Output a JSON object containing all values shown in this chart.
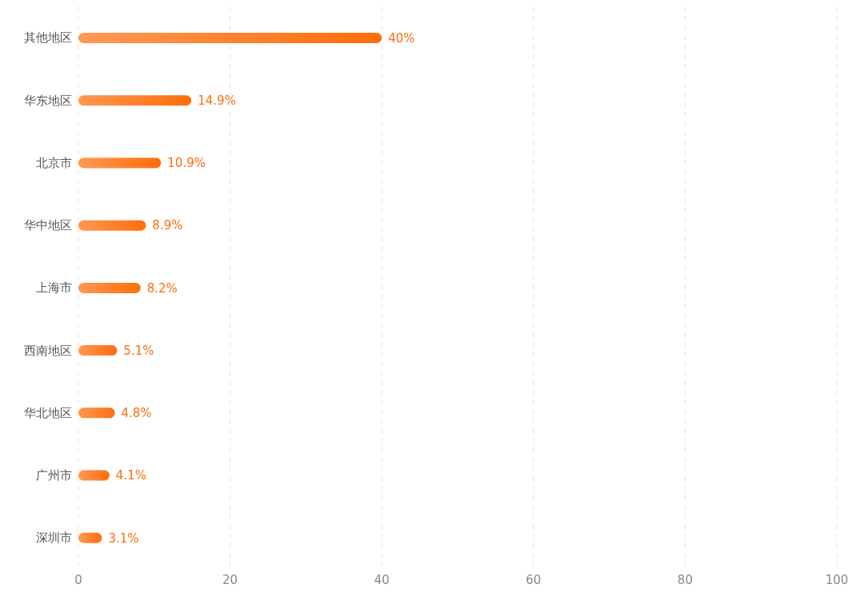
{
  "chart_data": {
    "type": "bar",
    "orientation": "horizontal",
    "categories": [
      "其他地区",
      "华东地区",
      "北京市",
      "华中地区",
      "上海市",
      "西南地区",
      "华北地区",
      "广州市",
      "深圳市"
    ],
    "values": [
      40,
      14.9,
      10.9,
      8.9,
      8.2,
      5.1,
      4.8,
      4.1,
      3.1
    ],
    "value_labels": [
      "40%",
      "14.9%",
      "10.9%",
      "8.9%",
      "8.2%",
      "5.1%",
      "4.8%",
      "4.1%",
      "3.1%"
    ],
    "color": "#ff6d0a",
    "xlim": [
      0,
      100
    ],
    "xticks": [
      0,
      20,
      40,
      60,
      80,
      100
    ],
    "grid": "x",
    "legend": false
  }
}
